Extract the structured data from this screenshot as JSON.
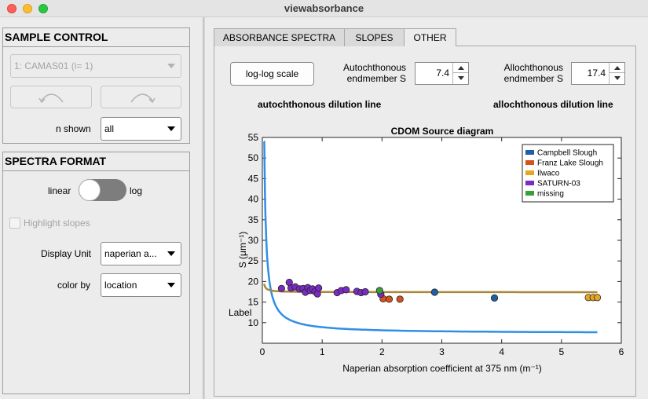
{
  "window": {
    "title": "viewabsorbance"
  },
  "sample_control": {
    "title": "SAMPLE CONTROL",
    "sample_select": "1: CAMAS01 (i= 1)",
    "n_shown_label": "n shown",
    "n_shown_value": "all"
  },
  "spectra_format": {
    "title": "SPECTRA FORMAT",
    "switch_left_label": "linear",
    "switch_right_label": "log",
    "switch_state": "linear",
    "highlight_slopes_label": "Highlight slopes",
    "highlight_slopes_checked": false,
    "display_unit_label": "Display Unit",
    "display_unit_value": "naperian a...",
    "color_by_label": "color by",
    "color_by_value": "location"
  },
  "tabs": [
    {
      "label": "ABSORBANCE SPECTRA",
      "active": false
    },
    {
      "label": "SLOPES",
      "active": false
    },
    {
      "label": "OTHER",
      "active": true
    }
  ],
  "other_tab": {
    "loglog_button": "log-log scale",
    "auto_label_line1": "Autochthonous",
    "auto_label_line2": "endmember S",
    "auto_value": "7.4",
    "allo_label_line1": "Allochthonous",
    "allo_label_line2": "endmember S",
    "allo_value": "17.4",
    "auto_dilution_label": "autochthonous dilution line",
    "allo_dilution_label": "allochthonous dilution line",
    "auto_dilution_color": "#2e8fe6",
    "allo_dilution_color": "#a8873a"
  },
  "chart_data": {
    "type": "scatter",
    "title": "CDOM Source diagram",
    "xlabel": "Naperian  absorption  coefficient  at  375  nm  (m⁻¹)",
    "ylabel": "S  (μm⁻¹)",
    "stray_label": "Label",
    "xlim": [
      0,
      6
    ],
    "ylim": [
      5,
      55
    ],
    "xticks": [
      0,
      1,
      2,
      3,
      4,
      5,
      6
    ],
    "yticks": [
      10,
      15,
      20,
      25,
      30,
      35,
      40,
      45,
      50,
      55
    ],
    "grid": false,
    "legend_position": "top-right",
    "lines": [
      {
        "name": "autochthonous dilution line",
        "color": "#2e8fe6",
        "endmember_S": 7.4
      },
      {
        "name": "allochthonous dilution line",
        "color": "#a8873a",
        "endmember_S": 17.4
      }
    ],
    "series": [
      {
        "name": "Campbell Slough",
        "color": "#1f5fa8",
        "points": [
          [
            2.88,
            17.4
          ],
          [
            3.88,
            16.0
          ]
        ]
      },
      {
        "name": "Franz Lake Slough",
        "color": "#d4521c",
        "points": [
          [
            2.02,
            15.8
          ],
          [
            2.12,
            15.7
          ],
          [
            2.3,
            15.7
          ]
        ]
      },
      {
        "name": "Ilwaco",
        "color": "#e6a625",
        "points": [
          [
            5.45,
            16.1
          ],
          [
            5.53,
            16.1
          ],
          [
            5.6,
            16.1
          ]
        ]
      },
      {
        "name": "SATURN-03",
        "color": "#7a2bc4",
        "points": [
          [
            0.32,
            18.3
          ],
          [
            0.45,
            19.8
          ],
          [
            0.48,
            18.4
          ],
          [
            0.55,
            18.7
          ],
          [
            0.62,
            18.2
          ],
          [
            0.68,
            18.3
          ],
          [
            0.72,
            17.4
          ],
          [
            0.76,
            18.5
          ],
          [
            0.8,
            17.8
          ],
          [
            0.84,
            18.2
          ],
          [
            0.88,
            17.6
          ],
          [
            0.92,
            17.0
          ],
          [
            0.94,
            18.4
          ],
          [
            1.25,
            17.3
          ],
          [
            1.32,
            17.8
          ],
          [
            1.4,
            18.0
          ],
          [
            1.58,
            17.6
          ],
          [
            1.65,
            17.3
          ],
          [
            1.72,
            17.5
          ],
          [
            1.98,
            16.9
          ]
        ]
      },
      {
        "name": "missing",
        "color": "#3a9f3a",
        "points": [
          [
            1.96,
            17.8
          ]
        ]
      }
    ]
  }
}
